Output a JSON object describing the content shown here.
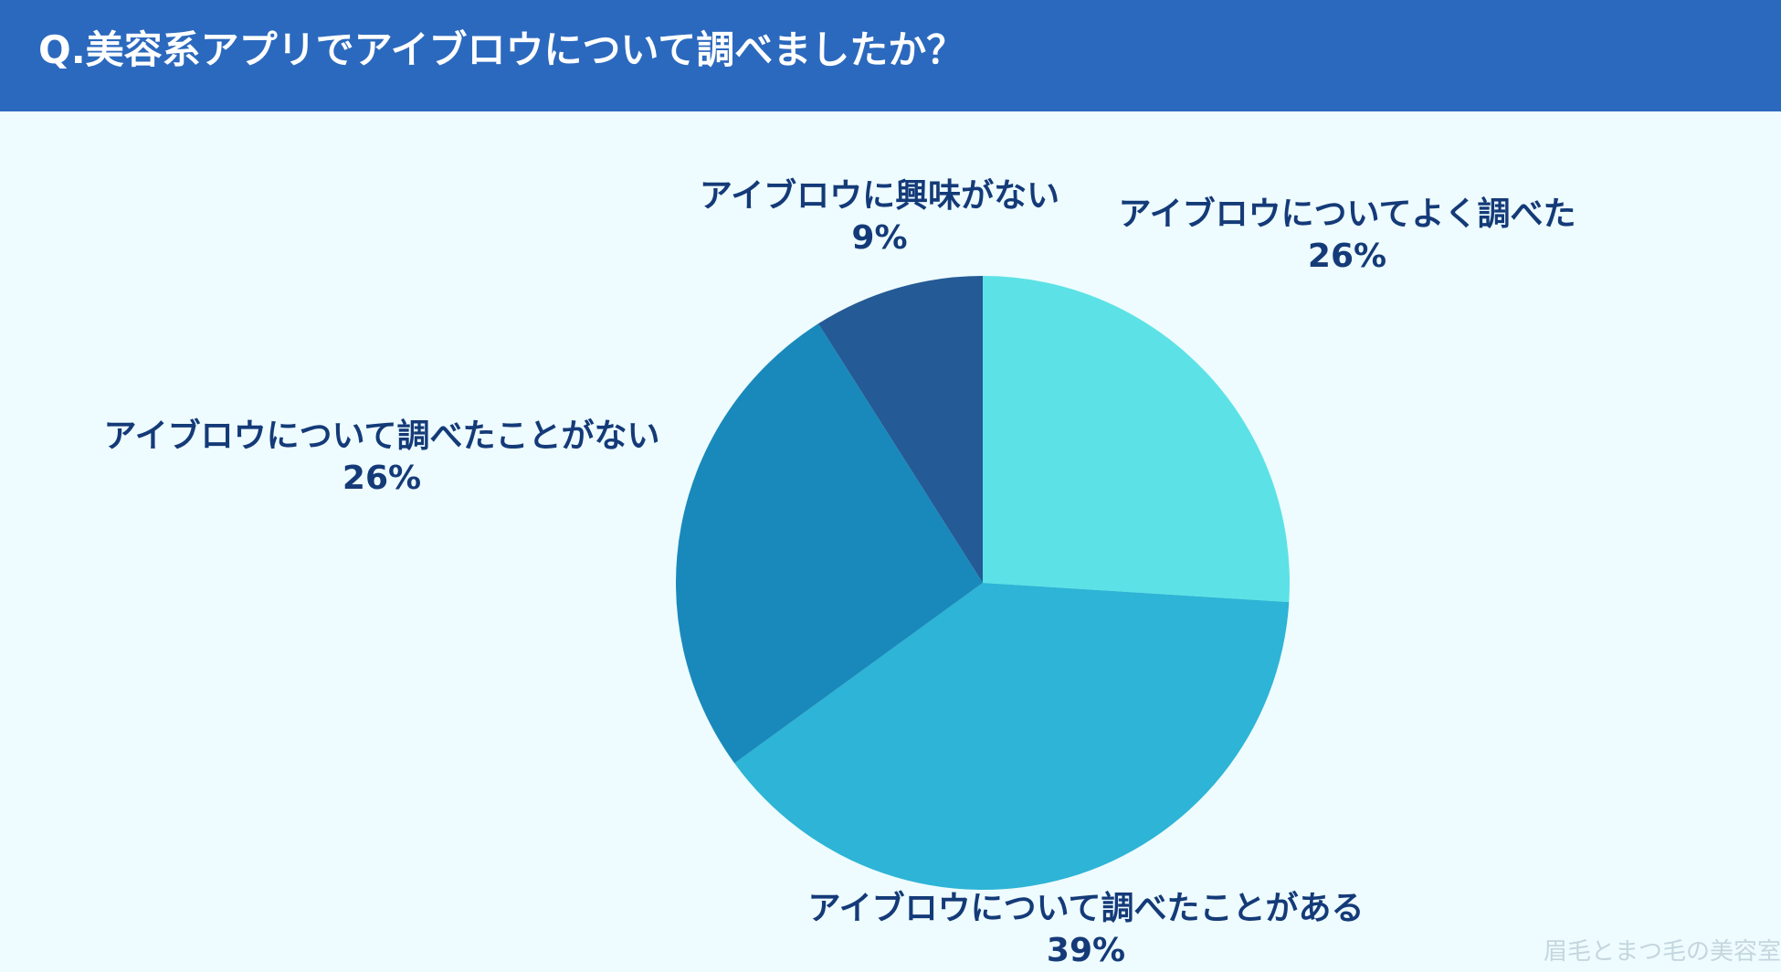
{
  "header": {
    "title": "Q.美容系アプリでアイブロウについて調べましたか？"
  },
  "colors": {
    "header_bg": "#2b69be",
    "background": "#eefcff",
    "label_text": "#143a78",
    "watermark": "#c4d6de"
  },
  "chart_data": {
    "type": "pie",
    "title": "Q.美容系アプリでアイブロウについて調べましたか？",
    "start": "12 o'clock",
    "direction": "clockwise",
    "slices": [
      {
        "label": "アイブロウについてよく調べた",
        "value": 26,
        "value_label": "26%",
        "color": "#5ce2e6"
      },
      {
        "label": "アイブロウについて調べたことがある",
        "value": 39,
        "value_label": "39%",
        "color": "#2db4d6"
      },
      {
        "label": "アイブロウについて調べたことがない",
        "value": 26,
        "value_label": "26%",
        "color": "#1989bb"
      },
      {
        "label": "アイブロウに興味がない",
        "value": 9,
        "value_label": "9%",
        "color": "#245a95"
      }
    ]
  },
  "watermark": "眉毛とまつ毛の美容室"
}
